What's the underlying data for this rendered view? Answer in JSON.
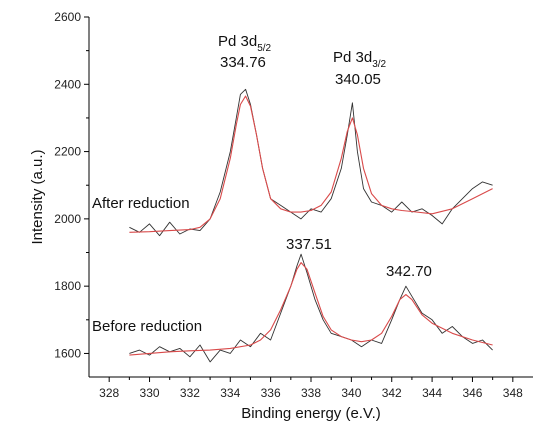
{
  "chart_data": {
    "type": "line",
    "title": "",
    "xlabel": "Binding energy (e.V.)",
    "ylabel": "Intensity (a.u.)",
    "xlim": [
      327,
      349
    ],
    "ylim": [
      1530,
      2600
    ],
    "x_ticks": [
      328,
      330,
      332,
      334,
      336,
      338,
      340,
      342,
      344,
      346,
      348
    ],
    "y_ticks": [
      1600,
      1800,
      2000,
      2200,
      2400,
      2600
    ],
    "grid": false,
    "legend": "none",
    "series": [
      {
        "label": "After reduction",
        "color": "#333333",
        "style": "raw",
        "x": [
          329.0,
          329.5,
          330.0,
          330.5,
          331.0,
          331.5,
          332.0,
          332.5,
          333.0,
          333.5,
          334.0,
          334.3,
          334.5,
          334.76,
          335.0,
          335.3,
          335.6,
          336.0,
          336.5,
          337.0,
          337.5,
          338.0,
          338.5,
          339.0,
          339.5,
          339.8,
          340.05,
          340.3,
          340.6,
          341.0,
          341.5,
          342.0,
          342.5,
          343.0,
          343.5,
          344.0,
          344.5,
          345.0,
          345.5,
          346.0,
          346.5,
          347.0
        ],
        "y": [
          1975,
          1960,
          1985,
          1950,
          1990,
          1955,
          1970,
          1965,
          2000,
          2080,
          2200,
          2300,
          2370,
          2385,
          2340,
          2250,
          2150,
          2060,
          2040,
          2020,
          2000,
          2030,
          2020,
          2060,
          2150,
          2250,
          2345,
          2200,
          2090,
          2050,
          2040,
          2020,
          2050,
          2020,
          2030,
          2010,
          1985,
          2030,
          2060,
          2090,
          2110,
          2100
        ]
      },
      {
        "label": "After reduction fit",
        "color": "#d94a4a",
        "style": "fit",
        "x": [
          329.0,
          330.0,
          331.0,
          332.0,
          332.5,
          333.0,
          333.5,
          334.0,
          334.3,
          334.5,
          334.76,
          335.0,
          335.3,
          335.6,
          336.0,
          336.5,
          337.0,
          337.5,
          338.0,
          338.5,
          339.0,
          339.5,
          339.8,
          340.05,
          340.3,
          340.6,
          341.0,
          341.5,
          342.0,
          342.5,
          343.0,
          344.0,
          345.0,
          346.0,
          347.0
        ],
        "y": [
          1960,
          1962,
          1965,
          1968,
          1975,
          2000,
          2060,
          2180,
          2280,
          2340,
          2365,
          2335,
          2250,
          2150,
          2060,
          2030,
          2020,
          2020,
          2025,
          2040,
          2080,
          2180,
          2260,
          2300,
          2250,
          2150,
          2075,
          2040,
          2030,
          2025,
          2022,
          2015,
          2030,
          2060,
          2090
        ]
      },
      {
        "label": "Before reduction",
        "color": "#333333",
        "style": "raw",
        "x": [
          329.0,
          329.5,
          330.0,
          330.5,
          331.0,
          331.5,
          332.0,
          332.5,
          333.0,
          333.5,
          334.0,
          334.5,
          335.0,
          335.5,
          336.0,
          336.5,
          337.0,
          337.3,
          337.51,
          337.8,
          338.2,
          338.6,
          339.0,
          339.5,
          340.0,
          340.5,
          341.0,
          341.5,
          342.0,
          342.4,
          342.7,
          343.0,
          343.5,
          344.0,
          344.5,
          345.0,
          345.5,
          346.0,
          346.5,
          347.0
        ],
        "y": [
          1600,
          1610,
          1595,
          1620,
          1605,
          1615,
          1590,
          1625,
          1575,
          1610,
          1600,
          1640,
          1620,
          1660,
          1640,
          1720,
          1800,
          1860,
          1895,
          1840,
          1760,
          1700,
          1660,
          1650,
          1640,
          1620,
          1640,
          1630,
          1700,
          1760,
          1800,
          1770,
          1720,
          1700,
          1660,
          1680,
          1650,
          1630,
          1640,
          1610
        ]
      },
      {
        "label": "Before reduction fit",
        "color": "#d94a4a",
        "style": "fit",
        "x": [
          329.0,
          330.0,
          331.0,
          332.0,
          333.0,
          334.0,
          335.0,
          335.5,
          336.0,
          336.5,
          337.0,
          337.3,
          337.51,
          337.8,
          338.2,
          338.6,
          339.0,
          339.5,
          340.0,
          340.5,
          341.0,
          341.5,
          342.0,
          342.4,
          342.7,
          343.0,
          343.5,
          344.0,
          345.0,
          346.0,
          347.0
        ],
        "y": [
          1595,
          1600,
          1605,
          1608,
          1610,
          1615,
          1625,
          1640,
          1670,
          1730,
          1800,
          1850,
          1870,
          1850,
          1780,
          1710,
          1670,
          1650,
          1640,
          1635,
          1640,
          1660,
          1710,
          1760,
          1775,
          1760,
          1715,
          1690,
          1660,
          1640,
          1625
        ]
      }
    ],
    "annotations": [
      {
        "id": "pd52",
        "main": "Pd 3d",
        "sub": "5/2",
        "value": "334.76"
      },
      {
        "id": "pd32",
        "main": "Pd 3d",
        "sub": "3/2",
        "value": "340.05"
      },
      {
        "id": "peak3751",
        "value": "337.51"
      },
      {
        "id": "peak3427",
        "value": "342.70"
      },
      {
        "id": "after-label",
        "value": "After reduction"
      },
      {
        "id": "before-label",
        "value": "Before reduction"
      }
    ]
  }
}
